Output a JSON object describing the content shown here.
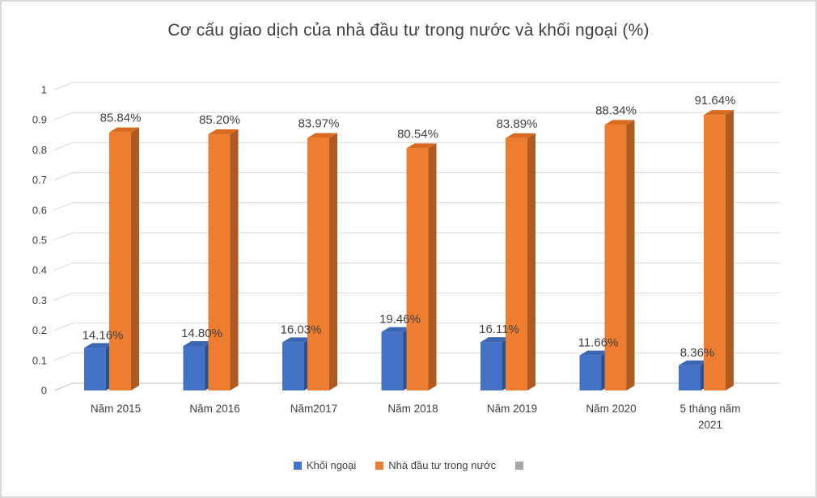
{
  "page": {
    "background": "#FFFFFF",
    "border_color": "#D9D9D9",
    "text_color": "#404040"
  },
  "chart_data": {
    "type": "bar",
    "title": "Cơ cấu giao dịch của nhà đầu tư trong nước và khối ngoại (%)",
    "categories": [
      "Năm 2015",
      "Năm 2016",
      "Năm2017",
      "Năm 2018",
      "Năm 2019",
      "Năm 2020",
      "5 tháng năm 2021"
    ],
    "series": [
      {
        "name": "Khối ngoại",
        "color": "#4472C4",
        "side_color": "#29508F",
        "top_color": "#3A67B1",
        "values": [
          14.16,
          14.8,
          16.03,
          19.46,
          16.11,
          11.66,
          8.36
        ],
        "labels": [
          "14.16%",
          "14.80%",
          "16.03%",
          "19.46%",
          "16.11%",
          "11.66%",
          "8.36%"
        ]
      },
      {
        "name": "Nhà đầu tư trong nước",
        "color": "#ED7D31",
        "side_color": "#AE5A21",
        "top_color": "#D96B20",
        "values": [
          85.84,
          85.2,
          83.97,
          80.54,
          83.89,
          88.34,
          91.64
        ],
        "labels": [
          "85.84%",
          "85.20%",
          "83.97%",
          "80.54%",
          "83.89%",
          "88.34%",
          "91.64%"
        ]
      }
    ],
    "ylim": [
      0,
      1
    ],
    "yticks": [
      "0",
      "0.1",
      "0.2",
      "0.3",
      "0.4",
      "0.5",
      "0.6",
      "0.7",
      "0.8",
      "0.9",
      "1"
    ],
    "grid": true,
    "grid_color": "#D9D9D9",
    "axis_line_color": "#BFBFBF",
    "label_color": "#404040",
    "legend_position": "bottom",
    "legend_extra_swatch_color": "#A6A6A6",
    "style": "3d-column"
  }
}
